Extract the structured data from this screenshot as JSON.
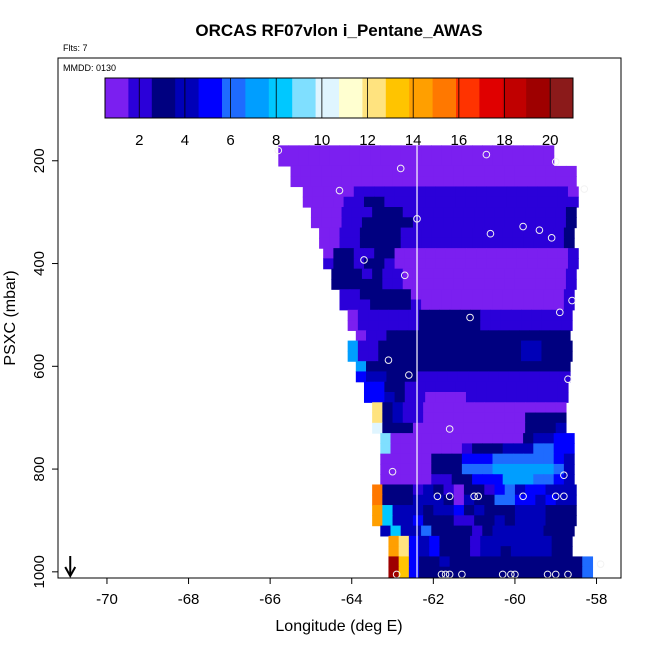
{
  "chart_data": {
    "type": "heatmap",
    "title": "ORCAS RF07vlon i_Pentane_AWAS",
    "top_left_note": "Flts: 7",
    "inner_note": "MMDD: 0130",
    "xlabel": "Longitude (deg E)",
    "ylabel": "PSXC (mbar)",
    "xlim": [
      -71.2,
      -57.4
    ],
    "ylim": [
      1012,
      0
    ],
    "xticks": [
      -70,
      -68,
      -66,
      -64,
      -62,
      -60,
      -58
    ],
    "yticks": [
      200,
      400,
      600,
      800,
      1000
    ],
    "vertical_line_x": -62.4,
    "arrow_marker_x": -70.9,
    "colorbar": {
      "min": 0.5,
      "max": 21.0,
      "ticks": [
        2,
        4,
        6,
        8,
        10,
        12,
        14,
        16,
        18,
        20
      ],
      "colors": [
        "#7B1FF0",
        "#2B00D9",
        "#000080",
        "#0000B8",
        "#0000FF",
        "#1E6BFF",
        "#009EFF",
        "#00C8FF",
        "#7FDFFF",
        "#DFF5FF",
        "#FFFFD0",
        "#FFE37F",
        "#FFC400",
        "#FF9F00",
        "#FF7800",
        "#FF3300",
        "#E00000",
        "#C00000",
        "#9E0000",
        "#8B1A1A"
      ]
    },
    "cell_size": {
      "dlon": 0.25,
      "dp": 20
    },
    "rows": [
      {
        "p": 180,
        "lon_start": -65.8,
        "values": [
          1,
          1,
          1,
          1,
          1,
          1,
          1,
          1,
          1,
          1,
          1,
          1,
          1,
          1,
          1,
          1,
          1,
          1,
          1,
          1,
          1,
          1,
          1,
          1,
          1,
          1,
          1
        ]
      },
      {
        "p": 200,
        "lon_start": -65.8,
        "values": [
          1,
          1,
          1,
          1,
          1,
          1,
          1,
          1,
          1,
          1,
          1,
          1,
          1,
          1,
          1,
          1,
          1,
          1,
          1,
          1,
          1,
          1,
          1,
          1,
          1,
          1,
          1
        ]
      },
      {
        "p": 220,
        "lon_start": -65.5,
        "values": [
          1,
          1,
          1,
          1,
          1,
          1,
          1,
          1,
          1,
          1,
          1,
          1,
          1,
          1,
          1,
          1,
          1,
          1,
          1,
          1,
          1,
          1,
          1,
          1,
          1,
          1,
          1,
          1
        ]
      },
      {
        "p": 240,
        "lon_start": -65.5,
        "values": [
          1,
          1,
          1,
          1,
          1,
          1,
          1,
          1,
          1,
          1,
          1,
          1,
          1,
          1,
          1,
          1,
          1,
          1,
          1,
          1,
          1,
          1,
          1,
          1,
          1,
          1,
          1,
          1
        ]
      },
      {
        "p": 260,
        "lon_start": -65.2,
        "values": [
          1,
          1,
          1,
          1,
          1,
          2,
          2,
          2,
          2,
          2,
          2,
          2,
          2,
          2,
          2,
          2,
          2,
          2,
          2,
          2,
          2,
          2,
          2,
          2,
          2,
          2,
          1
        ]
      },
      {
        "p": 280,
        "lon_start": -65.2,
        "values": [
          1,
          1,
          1,
          1,
          2,
          2,
          3,
          3,
          2,
          2,
          2,
          2,
          2,
          2,
          2,
          2,
          2,
          2,
          2,
          2,
          2,
          2,
          2,
          2,
          2,
          2,
          2
        ]
      },
      {
        "p": 300,
        "lon_start": -65.0,
        "values": [
          1,
          1,
          1,
          2,
          2,
          2,
          3,
          3,
          3,
          2,
          2,
          2,
          2,
          2,
          2,
          2,
          2,
          2,
          2,
          2,
          2,
          2,
          2,
          2,
          2,
          3
        ]
      },
      {
        "p": 320,
        "lon_start": -65.0,
        "values": [
          1,
          1,
          1,
          2,
          2,
          3,
          3,
          3,
          3,
          3,
          2,
          2,
          2,
          2,
          2,
          2,
          2,
          2,
          2,
          2,
          2,
          2,
          2,
          2,
          2,
          3
        ]
      },
      {
        "p": 340,
        "lon_start": -64.8,
        "values": [
          1,
          1,
          2,
          2,
          3,
          3,
          3,
          3,
          2,
          2,
          2,
          2,
          2,
          2,
          2,
          2,
          2,
          2,
          2,
          2,
          2,
          2,
          2,
          2,
          3
        ]
      },
      {
        "p": 360,
        "lon_start": -64.8,
        "values": [
          1,
          1,
          2,
          2,
          3,
          3,
          3,
          3,
          2,
          2,
          2,
          2,
          2,
          2,
          2,
          2,
          2,
          2,
          2,
          2,
          2,
          2,
          2,
          2,
          3
        ]
      },
      {
        "p": 380,
        "lon_start": -64.7,
        "values": [
          1,
          3,
          3,
          2,
          2,
          3,
          3,
          1,
          1,
          1,
          1,
          1,
          1,
          1,
          1,
          1,
          1,
          1,
          1,
          1,
          1,
          1,
          1,
          1,
          2
        ]
      },
      {
        "p": 400,
        "lon_start": -64.7,
        "values": [
          2,
          3,
          3,
          2,
          3,
          3,
          2,
          1,
          1,
          1,
          1,
          1,
          1,
          1,
          1,
          1,
          1,
          1,
          1,
          1,
          1,
          1,
          1,
          1,
          2
        ]
      },
      {
        "p": 420,
        "lon_start": -64.5,
        "values": [
          3,
          3,
          3,
          2,
          3,
          2,
          2,
          1,
          1,
          1,
          1,
          1,
          1,
          1,
          1,
          1,
          1,
          1,
          1,
          1,
          1,
          1,
          1,
          2
        ]
      },
      {
        "p": 440,
        "lon_start": -64.5,
        "values": [
          3,
          3,
          3,
          3,
          3,
          2,
          2,
          1,
          1,
          1,
          1,
          1,
          1,
          1,
          1,
          1,
          1,
          1,
          1,
          1,
          1,
          1,
          1,
          2
        ]
      },
      {
        "p": 460,
        "lon_start": -64.3,
        "values": [
          2,
          2,
          3,
          3,
          3,
          3,
          3,
          1,
          1,
          1,
          1,
          1,
          1,
          1,
          1,
          1,
          1,
          1,
          1,
          1,
          1,
          1,
          2
        ]
      },
      {
        "p": 480,
        "lon_start": -64.3,
        "values": [
          2,
          2,
          2,
          3,
          3,
          3,
          3,
          2,
          1,
          1,
          1,
          1,
          1,
          1,
          1,
          1,
          1,
          1,
          1,
          1,
          1,
          1,
          2
        ]
      },
      {
        "p": 500,
        "lon_start": -64.1,
        "values": [
          1,
          2,
          2,
          2,
          2,
          2,
          2,
          3,
          3,
          3,
          3,
          3,
          3,
          2,
          2,
          2,
          2,
          2,
          2,
          2,
          2,
          2
        ]
      },
      {
        "p": 520,
        "lon_start": -64.1,
        "values": [
          1,
          2,
          2,
          2,
          2,
          2,
          2,
          3,
          3,
          3,
          3,
          3,
          3,
          2,
          2,
          2,
          2,
          2,
          2,
          2,
          2,
          2
        ]
      },
      {
        "p": 540,
        "lon_start": -63.9,
        "values": [
          1,
          2,
          2,
          3,
          3,
          3,
          3,
          3,
          3,
          3,
          3,
          3,
          3,
          3,
          3,
          3,
          3,
          3,
          3,
          3,
          3
        ]
      },
      {
        "p": 560,
        "lon_start": -64.1,
        "values": [
          7,
          2,
          2,
          3,
          3,
          3,
          3,
          3,
          3,
          3,
          3,
          3,
          3,
          3,
          3,
          3,
          3,
          4,
          4,
          3,
          3,
          3
        ]
      },
      {
        "p": 580,
        "lon_start": -64.1,
        "values": [
          7,
          2,
          2,
          3,
          3,
          3,
          3,
          3,
          3,
          3,
          3,
          3,
          3,
          3,
          3,
          3,
          3,
          4,
          4,
          3,
          3,
          3
        ]
      },
      {
        "p": 600,
        "lon_start": -63.9,
        "values": [
          7,
          3,
          3,
          3,
          3,
          3,
          3,
          3,
          3,
          3,
          3,
          3,
          3,
          3,
          3,
          3,
          3,
          3,
          3,
          3,
          3
        ]
      },
      {
        "p": 620,
        "lon_start": -63.9,
        "values": [
          5,
          4,
          4,
          3,
          3,
          3,
          2,
          2,
          2,
          2,
          2,
          2,
          2,
          2,
          2,
          2,
          2,
          2,
          2,
          2,
          2
        ]
      },
      {
        "p": 640,
        "lon_start": -63.7,
        "values": [
          5,
          5,
          3,
          3,
          2,
          2,
          2,
          2,
          2,
          2,
          2,
          2,
          2,
          2,
          2,
          2,
          2,
          2,
          2,
          2
        ]
      },
      {
        "p": 660,
        "lon_start": -63.7,
        "values": [
          5,
          5,
          4,
          3,
          2,
          2,
          1,
          1,
          1,
          1,
          2,
          2,
          2,
          2,
          2,
          2,
          2,
          2,
          2,
          2
        ]
      },
      {
        "p": 680,
        "lon_start": -63.5,
        "values": [
          12,
          3,
          4,
          2,
          2,
          1,
          1,
          1,
          1,
          1,
          1,
          1,
          1,
          1,
          1,
          1,
          1,
          1,
          1
        ]
      },
      {
        "p": 700,
        "lon_start": -63.5,
        "values": [
          12,
          3,
          4,
          2,
          2,
          1,
          1,
          1,
          1,
          1,
          1,
          1,
          1,
          1,
          1,
          3,
          3,
          3,
          3
        ]
      },
      {
        "p": 720,
        "lon_start": -63.5,
        "values": [
          10,
          3,
          3,
          3,
          1,
          1,
          1,
          1,
          1,
          1,
          1,
          1,
          1,
          1,
          1,
          3,
          3,
          3,
          4
        ]
      },
      {
        "p": 740,
        "lon_start": -63.3,
        "values": [
          9,
          1,
          1,
          1,
          1,
          1,
          1,
          1,
          1,
          1,
          1,
          1,
          1,
          1,
          3,
          4,
          4,
          5,
          5
        ]
      },
      {
        "p": 760,
        "lon_start": -63.3,
        "values": [
          9,
          1,
          1,
          1,
          1,
          1,
          1,
          1,
          2,
          3,
          3,
          3,
          4,
          4,
          4,
          6,
          6,
          5,
          5
        ]
      },
      {
        "p": 780,
        "lon_start": -63.3,
        "values": [
          1,
          1,
          1,
          1,
          1,
          3,
          3,
          3,
          5,
          5,
          5,
          6,
          6,
          6,
          6,
          6,
          6,
          5,
          4
        ]
      },
      {
        "p": 800,
        "lon_start": -63.3,
        "values": [
          1,
          1,
          1,
          1,
          1,
          3,
          3,
          3,
          6,
          6,
          6,
          7,
          7,
          7,
          7,
          7,
          7,
          6,
          4
        ]
      },
      {
        "p": 820,
        "lon_start": -63.3,
        "values": [
          1,
          1,
          1,
          1,
          1,
          2,
          2,
          3,
          3,
          5,
          5,
          5,
          7,
          7,
          7,
          6,
          6,
          5,
          4
        ]
      },
      {
        "p": 840,
        "lon_start": -63.5,
        "values": [
          15,
          3,
          3,
          3,
          2,
          4,
          3,
          2,
          1,
          3,
          3,
          2,
          5,
          6,
          4,
          5,
          5,
          4,
          4,
          4
        ]
      },
      {
        "p": 860,
        "lon_start": -63.5,
        "values": [
          15,
          3,
          3,
          3,
          4,
          4,
          4,
          3,
          1,
          4,
          3,
          3,
          6,
          6,
          5,
          5,
          4,
          5,
          4,
          4
        ]
      },
      {
        "p": 880,
        "lon_start": -63.5,
        "values": [
          14,
          8,
          4,
          4,
          4,
          3,
          4,
          4,
          5,
          3,
          4,
          3,
          3,
          3,
          4,
          4,
          4,
          3,
          3,
          3
        ]
      },
      {
        "p": 900,
        "lon_start": -63.5,
        "values": [
          14,
          8,
          4,
          4,
          5,
          3,
          3,
          3,
          2,
          2,
          3,
          3,
          4,
          3,
          4,
          4,
          4,
          3,
          3,
          3
        ]
      },
      {
        "p": 920,
        "lon_start": -63.3,
        "values": [
          4,
          8,
          4,
          4,
          6,
          3,
          3,
          3,
          3,
          2,
          3,
          4,
          4,
          4,
          4,
          4,
          3,
          3,
          3
        ]
      },
      {
        "p": 940,
        "lon_start": -63.1,
        "values": [
          14,
          12,
          5,
          4,
          5,
          3,
          3,
          3,
          2,
          4,
          4,
          4,
          4,
          4,
          4,
          4,
          3,
          3
        ]
      },
      {
        "p": 960,
        "lon_start": -63.1,
        "values": [
          14,
          12,
          5,
          4,
          5,
          3,
          3,
          3,
          2,
          4,
          4,
          3,
          4,
          4,
          4,
          4,
          3,
          3
        ]
      },
      {
        "p": 980,
        "lon_start": -63.1,
        "values": [
          19,
          13,
          5,
          3,
          3,
          4,
          3,
          3,
          3,
          3,
          3,
          3,
          3,
          3,
          3,
          3,
          3,
          3,
          3,
          6
        ]
      },
      {
        "p": 1000,
        "lon_start": -63.1,
        "values": [
          19,
          13,
          5,
          3,
          3,
          3,
          3,
          3,
          3,
          3,
          3,
          3,
          3,
          3,
          3,
          3,
          3,
          3,
          3,
          6
        ]
      }
    ],
    "sample_points": [
      {
        "lon": -65.8,
        "p": 180
      },
      {
        "lon": -62.8,
        "p": 215
      },
      {
        "lon": -60.7,
        "p": 188
      },
      {
        "lon": -59.0,
        "p": 202
      },
      {
        "lon": -64.3,
        "p": 258
      },
      {
        "lon": -58.3,
        "p": 255
      },
      {
        "lon": -62.4,
        "p": 313
      },
      {
        "lon": -60.6,
        "p": 342
      },
      {
        "lon": -59.8,
        "p": 328
      },
      {
        "lon": -59.4,
        "p": 335
      },
      {
        "lon": -59.1,
        "p": 350
      },
      {
        "lon": -63.7,
        "p": 393
      },
      {
        "lon": -62.7,
        "p": 423
      },
      {
        "lon": -58.6,
        "p": 472
      },
      {
        "lon": -58.9,
        "p": 495
      },
      {
        "lon": -61.1,
        "p": 505
      },
      {
        "lon": -63.1,
        "p": 588
      },
      {
        "lon": -62.6,
        "p": 617
      },
      {
        "lon": -58.7,
        "p": 625
      },
      {
        "lon": -61.6,
        "p": 722
      },
      {
        "lon": -63.0,
        "p": 805
      },
      {
        "lon": -61.9,
        "p": 853
      },
      {
        "lon": -61.6,
        "p": 853
      },
      {
        "lon": -61.0,
        "p": 853
      },
      {
        "lon": -60.9,
        "p": 853
      },
      {
        "lon": -59.8,
        "p": 853
      },
      {
        "lon": -59.0,
        "p": 853
      },
      {
        "lon": -58.8,
        "p": 812
      },
      {
        "lon": -58.8,
        "p": 853
      },
      {
        "lon": -62.9,
        "p": 1005
      },
      {
        "lon": -61.8,
        "p": 1005
      },
      {
        "lon": -61.7,
        "p": 1005
      },
      {
        "lon": -61.6,
        "p": 1005
      },
      {
        "lon": -61.3,
        "p": 1005
      },
      {
        "lon": -60.3,
        "p": 1005
      },
      {
        "lon": -60.1,
        "p": 1005
      },
      {
        "lon": -60.0,
        "p": 1005
      },
      {
        "lon": -59.2,
        "p": 1005
      },
      {
        "lon": -59.0,
        "p": 1005
      },
      {
        "lon": -58.7,
        "p": 1005
      },
      {
        "lon": -57.9,
        "p": 985
      }
    ]
  }
}
